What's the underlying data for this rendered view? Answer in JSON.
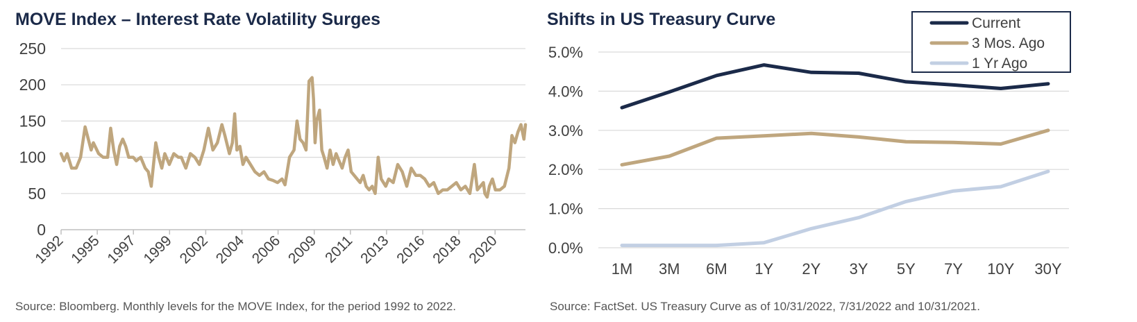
{
  "chart_data": [
    {
      "type": "line",
      "title": "MOVE Index – Interest Rate Volatility Surges",
      "source": "Source: Bloomberg. Monthly levels for the MOVE Index, for the period  1992 to 2022.",
      "x_tick_labels": [
        "1992",
        "1995",
        "1997",
        "1999",
        "2002",
        "2004",
        "2006",
        "2009",
        "2011",
        "2013",
        "2016",
        "2018",
        "2020"
      ],
      "y_tick_labels": [
        "0",
        "50",
        "100",
        "150",
        "200",
        "250"
      ],
      "ylim": [
        0,
        250
      ],
      "xlim": [
        1992.0,
        2022.9
      ],
      "grid": true,
      "legend": "none",
      "colors": {
        "series": "#bfa67e",
        "grid": "#d9d9d9",
        "text": "#404040"
      },
      "series": [
        {
          "x": [
            1992.0,
            1992.2,
            1992.4,
            1992.7,
            1993.0,
            1993.3,
            1993.6,
            1994.0,
            1994.15,
            1994.5,
            1994.8,
            1995.1,
            1995.3,
            1995.5,
            1995.7,
            1995.9,
            1996.1,
            1996.3,
            1996.5,
            1996.8,
            1997.0,
            1997.3,
            1997.6,
            1997.8,
            1998.0,
            1998.3,
            1998.5,
            1998.7,
            1998.9,
            1999.2,
            1999.5,
            1999.8,
            2000.0,
            2000.3,
            2000.6,
            2000.9,
            2001.2,
            2001.5,
            2001.8,
            2002.1,
            2002.4,
            2002.7,
            2002.9,
            2003.2,
            2003.4,
            2003.55,
            2003.7,
            2003.9,
            2004.1,
            2004.3,
            2004.6,
            2004.9,
            2005.2,
            2005.5,
            2005.8,
            2006.1,
            2006.4,
            2006.7,
            2006.9,
            2007.2,
            2007.5,
            2007.7,
            2007.9,
            2008.1,
            2008.3,
            2008.5,
            2008.7,
            2008.8,
            2008.9,
            2009.0,
            2009.2,
            2009.35,
            2009.5,
            2009.7,
            2009.9,
            2010.1,
            2010.3,
            2010.5,
            2010.7,
            2010.9,
            2011.1,
            2011.3,
            2011.5,
            2011.7,
            2011.9,
            2012.1,
            2012.3,
            2012.5,
            2012.7,
            2012.9,
            2013.1,
            2013.3,
            2013.45,
            2013.6,
            2013.8,
            2014.1,
            2014.4,
            2014.7,
            2015.0,
            2015.3,
            2015.6,
            2015.9,
            2016.2,
            2016.5,
            2016.8,
            2017.1,
            2017.4,
            2017.7,
            2018.0,
            2018.3,
            2018.6,
            2018.9,
            2019.2,
            2019.5,
            2019.7,
            2019.9,
            2020.1,
            2020.2,
            2020.35,
            2020.5,
            2020.7,
            2020.9,
            2021.2,
            2021.5,
            2021.8,
            2022.0,
            2022.2,
            2022.4,
            2022.6,
            2022.8,
            2022.9
          ],
          "values": [
            105,
            95,
            105,
            85,
            85,
            100,
            142,
            110,
            120,
            105,
            100,
            100,
            140,
            110,
            90,
            115,
            125,
            115,
            100,
            100,
            95,
            100,
            85,
            80,
            60,
            120,
            100,
            85,
            105,
            90,
            105,
            100,
            100,
            85,
            105,
            100,
            90,
            110,
            140,
            110,
            120,
            145,
            130,
            105,
            120,
            160,
            110,
            115,
            90,
            100,
            90,
            80,
            75,
            80,
            70,
            68,
            65,
            70,
            62,
            100,
            110,
            150,
            125,
            120,
            110,
            205,
            210,
            180,
            120,
            150,
            165,
            110,
            100,
            85,
            110,
            90,
            105,
            95,
            85,
            100,
            110,
            80,
            75,
            70,
            65,
            75,
            60,
            55,
            60,
            50,
            100,
            70,
            65,
            60,
            70,
            65,
            90,
            80,
            60,
            85,
            75,
            75,
            70,
            60,
            65,
            50,
            55,
            55,
            60,
            65,
            55,
            60,
            50,
            90,
            55,
            60,
            65,
            50,
            45,
            60,
            70,
            55,
            55,
            60,
            85,
            130,
            120,
            135,
            145,
            125,
            145
          ]
        }
      ]
    },
    {
      "type": "line",
      "title": "Shifts in US Treasury Curve",
      "source": "Source: FactSet. US Treasury Curve as of 10/31/2022, 7/31/2022 and 10/31/2021.",
      "categories": [
        "1M",
        "3M",
        "6M",
        "1Y",
        "2Y",
        "3Y",
        "5Y",
        "7Y",
        "10Y",
        "30Y"
      ],
      "y_tick_labels": [
        "0.0%",
        "1.0%",
        "2.0%",
        "3.0%",
        "4.0%",
        "5.0%"
      ],
      "ylim": [
        0,
        5
      ],
      "grid": true,
      "legend": "top-right",
      "colors": {
        "grid": "#d9d9d9",
        "text": "#404040",
        "legend_border": "#1b2a49"
      },
      "series": [
        {
          "name": "Current",
          "color": "#1b2a49",
          "values": [
            3.58,
            3.98,
            4.4,
            4.67,
            4.48,
            4.46,
            4.24,
            4.16,
            4.07,
            4.19
          ]
        },
        {
          "name": "3 Mos. Ago",
          "color": "#bfa67e",
          "values": [
            2.12,
            2.34,
            2.8,
            2.86,
            2.92,
            2.83,
            2.71,
            2.69,
            2.65,
            3.0
          ]
        },
        {
          "name": "1 Yr Ago",
          "color": "#c2cfe3",
          "values": [
            0.06,
            0.06,
            0.06,
            0.13,
            0.49,
            0.77,
            1.18,
            1.45,
            1.56,
            1.95
          ]
        }
      ]
    }
  ]
}
